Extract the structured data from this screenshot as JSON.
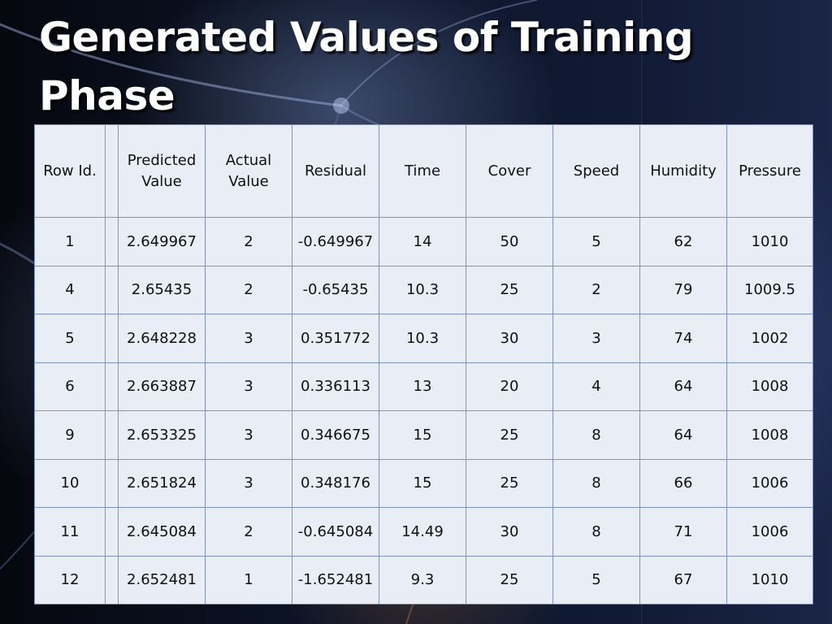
{
  "slide": {
    "title": "Generated Values of Training Phase"
  },
  "table": {
    "headers": [
      "Row Id.",
      "",
      "Predicted Value",
      "Actual Value",
      "Residual",
      "Time",
      "Cover",
      "Speed",
      "Humidity",
      "Pressure"
    ],
    "rows": [
      [
        "1",
        "",
        "2.649967",
        "2",
        "-0.649967",
        "14",
        "50",
        "5",
        "62",
        "1010"
      ],
      [
        "4",
        "",
        "2.65435",
        "2",
        "-0.65435",
        "10.3",
        "25",
        "2",
        "79",
        "1009.5"
      ],
      [
        "5",
        "",
        "2.648228",
        "3",
        "0.351772",
        "10.3",
        "30",
        "3",
        "74",
        "1002"
      ],
      [
        "6",
        "",
        "2.663887",
        "3",
        "0.336113",
        "13",
        "20",
        "4",
        "64",
        "1008"
      ],
      [
        "9",
        "",
        "2.653325",
        "3",
        "0.346675",
        "15",
        "25",
        "8",
        "64",
        "1008"
      ],
      [
        "10",
        "",
        "2.651824",
        "3",
        "0.348176",
        "15",
        "25",
        "8",
        "66",
        "1006"
      ],
      [
        "11",
        "",
        "2.645084",
        "2",
        "-0.645084",
        "14.49",
        "30",
        "8",
        "71",
        "1006"
      ],
      [
        "12",
        "",
        "2.652481",
        "1",
        "-1.652481",
        "9.3",
        "25",
        "5",
        "67",
        "1010"
      ]
    ]
  },
  "colors": {
    "table_background": "#e8edf6",
    "table_border": "#7d93c8",
    "title_color": "#ffffff"
  }
}
